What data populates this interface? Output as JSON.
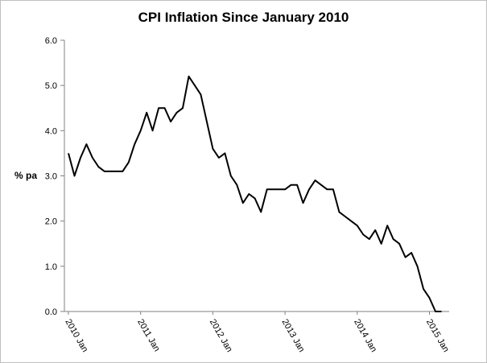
{
  "chart_data": {
    "type": "line",
    "title": "CPI Inflation Since January 2010",
    "ylabel": "% pa",
    "xlabel": "",
    "ylim": [
      0,
      6
    ],
    "yticks": [
      "0.0",
      "1.0",
      "2.0",
      "3.0",
      "4.0",
      "5.0",
      "6.0"
    ],
    "xtick_labels": [
      "2010 Jan",
      "2011 Jan",
      "2012 Jan",
      "2013 Jan",
      "2014 Jan",
      "2015 Jan"
    ],
    "grid": false,
    "legend": "none",
    "line_color": "#000000",
    "series": [
      {
        "values": [
          3.5,
          3.0,
          3.4,
          3.7,
          3.4,
          3.2,
          3.1,
          3.1,
          3.1,
          3.1,
          3.3,
          3.7,
          4.0,
          4.4,
          4.0,
          4.5,
          4.5,
          4.2,
          4.4,
          4.5,
          5.2,
          5.0,
          4.8,
          4.2,
          3.6,
          3.4,
          3.5,
          3.0,
          2.8,
          2.4,
          2.6,
          2.5,
          2.2,
          2.7,
          2.7,
          2.7,
          2.7,
          2.8,
          2.8,
          2.4,
          2.7,
          2.9,
          2.8,
          2.7,
          2.7,
          2.2,
          2.1,
          2.0,
          1.9,
          1.7,
          1.6,
          1.8,
          1.5,
          1.9,
          1.6,
          1.5,
          1.2,
          1.3,
          1.0,
          0.5,
          0.3,
          0.0,
          0.0
        ]
      }
    ]
  }
}
